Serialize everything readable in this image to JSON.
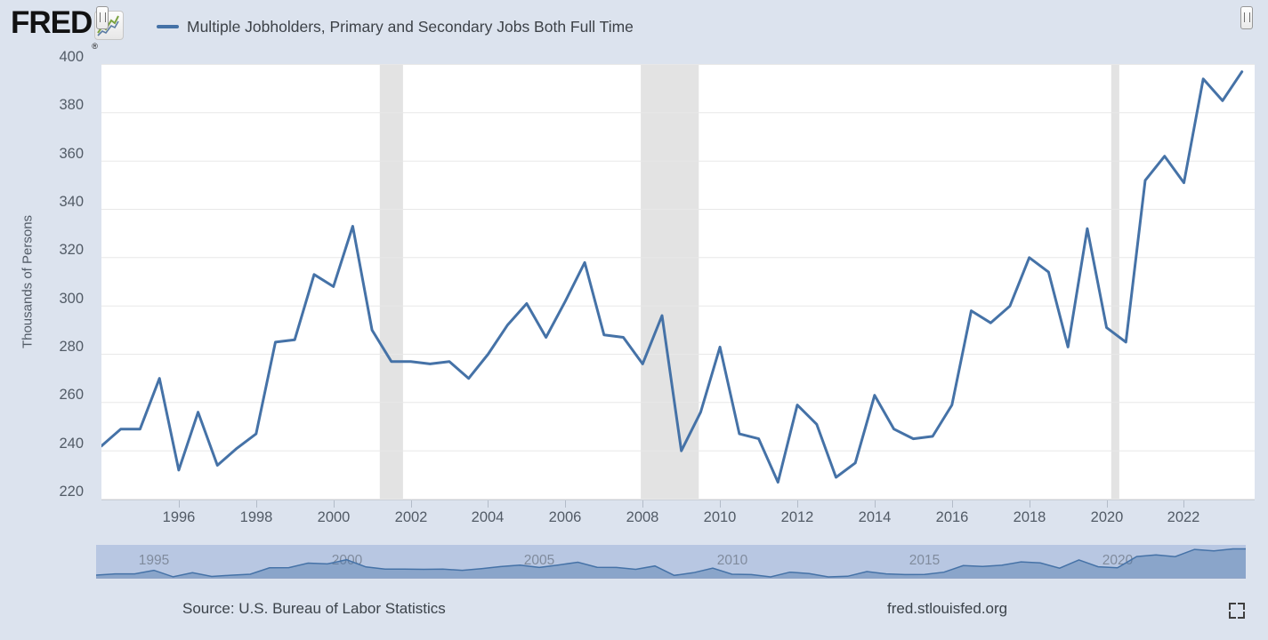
{
  "header": {
    "logo_text": "FRED",
    "logo_registered": "®",
    "logo_icon": "sparkline-icon",
    "legend": {
      "label": "Multiple Jobholders, Primary and Secondary Jobs Both Full Time",
      "color": "#4572a7"
    }
  },
  "y_axis": {
    "title": "Thousands of Persons",
    "ticks": [
      400,
      380,
      360,
      340,
      320,
      300,
      280,
      260,
      240,
      220
    ]
  },
  "x_axis": {
    "ticks": [
      1996,
      1998,
      2000,
      2002,
      2004,
      2006,
      2008,
      2010,
      2012,
      2014,
      2016,
      2018,
      2020,
      2022
    ]
  },
  "chart_data": {
    "type": "line",
    "title": "Multiple Jobholders, Primary and Secondary Jobs Both Full Time",
    "ylabel": "Thousands of Persons",
    "frequency": "semiannual",
    "xlim": [
      1994,
      2023.83
    ],
    "ylim": [
      220,
      400
    ],
    "grid": "horizontal",
    "legend_position": "top-left",
    "line_color": "#4572a7",
    "recession_color": "#e3e3e3",
    "grid_color": "#e8e8e8",
    "x": [
      1994.0,
      1994.5,
      1995.0,
      1995.5,
      1996.0,
      1996.5,
      1997.0,
      1997.5,
      1998.0,
      1998.5,
      1999.0,
      1999.5,
      2000.0,
      2000.5,
      2001.0,
      2001.5,
      2002.0,
      2002.5,
      2003.0,
      2003.5,
      2004.0,
      2004.5,
      2005.0,
      2005.5,
      2006.0,
      2006.5,
      2007.0,
      2007.5,
      2008.0,
      2008.5,
      2009.0,
      2009.5,
      2010.0,
      2010.5,
      2011.0,
      2011.5,
      2012.0,
      2012.5,
      2013.0,
      2013.5,
      2014.0,
      2014.5,
      2015.0,
      2015.5,
      2016.0,
      2016.5,
      2017.0,
      2017.5,
      2018.0,
      2018.5,
      2019.0,
      2019.5,
      2020.0,
      2020.5,
      2021.0,
      2021.5,
      2022.0,
      2022.5,
      2023.0,
      2023.5
    ],
    "values": [
      242,
      249,
      249,
      270,
      232,
      256,
      234,
      241,
      247,
      285,
      286,
      313,
      308,
      333,
      290,
      277,
      277,
      276,
      277,
      270,
      280,
      292,
      301,
      287,
      302,
      318,
      288,
      287,
      276,
      296,
      240,
      256,
      283,
      247,
      245,
      227,
      259,
      251,
      229,
      235,
      263,
      249,
      245,
      246,
      259,
      298,
      293,
      300,
      320,
      314,
      283,
      332,
      291,
      285,
      352,
      362,
      351,
      394,
      385,
      397
    ],
    "recessions": [
      {
        "start": 2001.2,
        "end": 2001.8
      },
      {
        "start": 2007.95,
        "end": 2009.45
      },
      {
        "start": 2020.12,
        "end": 2020.33
      }
    ]
  },
  "slider": {
    "labels": [
      1995,
      2000,
      2005,
      2010,
      2015,
      2020
    ],
    "track_color": "#b8c7e2",
    "area_color": "rgba(69,114,167,0.4)",
    "handle_icon": "grip-vertical-icon"
  },
  "footer": {
    "source": "Source: U.S. Bureau of Labor Statistics",
    "site": "fred.stlouisfed.org",
    "fullscreen_icon": "fullscreen-icon"
  }
}
